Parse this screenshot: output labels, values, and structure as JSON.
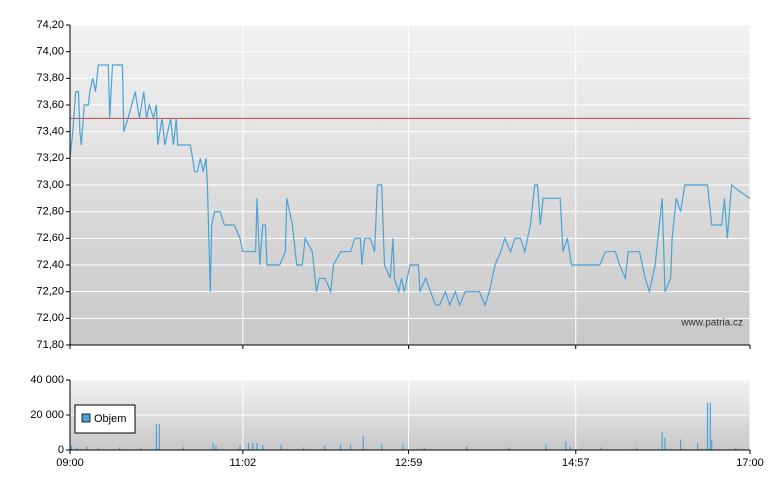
{
  "chart_data": [
    {
      "type": "line",
      "watermark": "www.patria.cz",
      "color": "#4aa3d4",
      "x": [
        540,
        542,
        544,
        546,
        547,
        548,
        550,
        553,
        554,
        556,
        558,
        560,
        567,
        568,
        570,
        577,
        578,
        581,
        586,
        589,
        592,
        594,
        596,
        599,
        601,
        602,
        605,
        607,
        611,
        613,
        615,
        616,
        625,
        628,
        630,
        632,
        634,
        636,
        637,
        639,
        640,
        642,
        646,
        649,
        656,
        660,
        662,
        671,
        672,
        674,
        676,
        678,
        679,
        688,
        692,
        693,
        697,
        700,
        704,
        706,
        711,
        714,
        716,
        720,
        724,
        726,
        731,
        734,
        738,
        741,
        745,
        746,
        748,
        752,
        755,
        757,
        760,
        762,
        766,
        768,
        769,
        772,
        774,
        776,
        780,
        786,
        787,
        791,
        798,
        801,
        805,
        808,
        812,
        815,
        819,
        829,
        833,
        836,
        840,
        844,
        847,
        851,
        854,
        858,
        861,
        865,
        868,
        870,
        872,
        874,
        886,
        888,
        891,
        894,
        914,
        918,
        925,
        928,
        932,
        934,
        942,
        946,
        949,
        953,
        955,
        958,
        960,
        964,
        965,
        968,
        971,
        974,
        985,
        990,
        992,
        993,
        1000,
        1002,
        1004,
        1007,
        1013,
        1020
      ],
      "values": [
        73.2,
        73.4,
        73.7,
        73.7,
        73.4,
        73.3,
        73.6,
        73.6,
        73.7,
        73.8,
        73.7,
        73.9,
        73.9,
        73.5,
        73.9,
        73.9,
        73.4,
        73.5,
        73.7,
        73.5,
        73.7,
        73.5,
        73.6,
        73.5,
        73.6,
        73.3,
        73.5,
        73.3,
        73.5,
        73.3,
        73.5,
        73.3,
        73.3,
        73.1,
        73.1,
        73.2,
        73.1,
        73.2,
        73.0,
        72.2,
        72.7,
        72.8,
        72.8,
        72.7,
        72.7,
        72.6,
        72.5,
        72.5,
        72.9,
        72.4,
        72.7,
        72.7,
        72.4,
        72.4,
        72.5,
        72.9,
        72.7,
        72.4,
        72.4,
        72.6,
        72.5,
        72.2,
        72.3,
        72.3,
        72.2,
        72.4,
        72.5,
        72.5,
        72.5,
        72.6,
        72.6,
        72.4,
        72.6,
        72.6,
        72.5,
        73.0,
        73.0,
        72.4,
        72.3,
        72.6,
        72.3,
        72.2,
        72.3,
        72.2,
        72.4,
        72.4,
        72.2,
        72.3,
        72.1,
        72.1,
        72.2,
        72.1,
        72.2,
        72.1,
        72.2,
        72.2,
        72.1,
        72.2,
        72.4,
        72.5,
        72.6,
        72.5,
        72.6,
        72.6,
        72.5,
        72.7,
        73.0,
        73.0,
        72.7,
        72.9,
        72.9,
        72.5,
        72.6,
        72.4,
        72.4,
        72.5,
        72.5,
        72.4,
        72.3,
        72.5,
        72.5,
        72.3,
        72.2,
        72.4,
        72.6,
        72.9,
        72.2,
        72.3,
        72.6,
        72.9,
        72.8,
        73.0,
        73.0,
        73.0,
        72.8,
        72.7,
        72.7,
        72.9,
        72.6,
        73.0,
        72.95,
        72.9
      ],
      "reference_line": {
        "value": 73.5,
        "color": "#cc4444"
      },
      "xlim": [
        540,
        1020
      ],
      "ylim": [
        71.8,
        74.2
      ],
      "yticks": [
        {
          "value": 71.8,
          "label": "71,80"
        },
        {
          "value": 72.0,
          "label": "72,00"
        },
        {
          "value": 72.2,
          "label": "72,20"
        },
        {
          "value": 72.4,
          "label": "72,40"
        },
        {
          "value": 72.6,
          "label": "72,60"
        },
        {
          "value": 72.8,
          "label": "72,80"
        },
        {
          "value": 73.0,
          "label": "73,00"
        },
        {
          "value": 73.2,
          "label": "73,20"
        },
        {
          "value": 73.4,
          "label": "73,40"
        },
        {
          "value": 73.6,
          "label": "73,60"
        },
        {
          "value": 73.8,
          "label": "73,80"
        },
        {
          "value": 74.0,
          "label": "74,00"
        },
        {
          "value": 74.2,
          "label": "74,20"
        }
      ],
      "grid": true
    },
    {
      "type": "bar",
      "x": [
        541,
        545,
        552,
        560,
        575,
        590,
        601,
        603,
        620,
        641,
        643,
        660,
        666,
        669,
        672,
        676,
        689,
        705,
        720,
        731,
        738,
        747,
        760,
        775,
        790,
        820,
        850,
        876,
        890,
        893,
        915,
        940,
        958,
        960,
        971,
        983,
        990,
        992,
        993,
        1010
      ],
      "series": [
        {
          "name": "Objem",
          "color": "#4aa3d4",
          "values": [
            2500,
            1500,
            2000,
            1000,
            1500,
            1000,
            15000,
            15000,
            1500,
            4000,
            2500,
            2500,
            4000,
            4000,
            4000,
            3000,
            3000,
            1500,
            2500,
            3000,
            3000,
            8000,
            3000,
            3000,
            1500,
            2000,
            1500,
            3000,
            5000,
            2000,
            1500,
            1500,
            10000,
            7000,
            6000,
            4000,
            27000,
            27000,
            6000,
            1500
          ]
        }
      ],
      "legend": "bottom-left",
      "xlim": [
        540,
        1020
      ],
      "xticks": [
        {
          "value": 540,
          "label": "09:00"
        },
        {
          "value": 662,
          "label": "11:02"
        },
        {
          "value": 779,
          "label": "12:59"
        },
        {
          "value": 897,
          "label": "14:57"
        },
        {
          "value": 1020,
          "label": "17:00"
        }
      ],
      "ylim": [
        0,
        40000
      ],
      "yticks": [
        0,
        {
          "value": 20000,
          "label": "20 000"
        },
        {
          "value": 40000,
          "label": "40 000"
        }
      ],
      "grid": true
    }
  ]
}
